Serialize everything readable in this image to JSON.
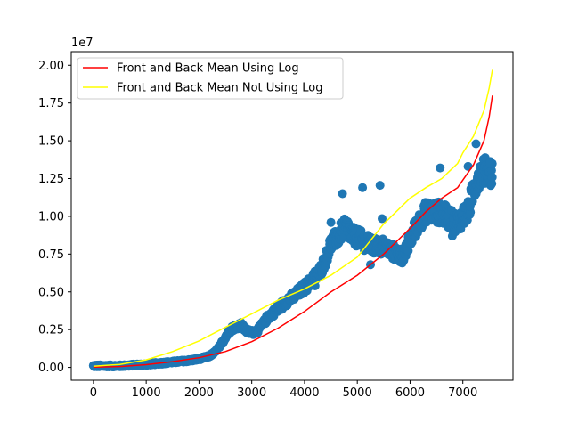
{
  "chart_data": {
    "type": "scatter",
    "title": "",
    "xlabel": "",
    "ylabel": "",
    "y_offset_label": "1e7",
    "xlim": [
      -420,
      7950
    ],
    "ylim": [
      -850000,
      20900000
    ],
    "x_ticks": [
      0,
      1000,
      2000,
      3000,
      4000,
      5000,
      6000,
      7000
    ],
    "x_tick_labels": [
      "0",
      "1000",
      "2000",
      "3000",
      "4000",
      "5000",
      "6000",
      "7000"
    ],
    "y_ticks": [
      0,
      2500000,
      5000000,
      7500000,
      10000000,
      12500000,
      15000000,
      17500000,
      20000000
    ],
    "y_tick_labels": [
      "0.00",
      "0.25",
      "0.50",
      "0.75",
      "1.00",
      "1.25",
      "1.50",
      "1.75",
      "2.00"
    ],
    "grid": false,
    "legend_position": "upper-left",
    "scatter_color": "#1f77b4",
    "scatter_trend": {
      "x": [
        0,
        500,
        1000,
        1500,
        1800,
        2000,
        2200,
        2300,
        2400,
        2500,
        2600,
        2700,
        2800,
        2900,
        3000,
        3100,
        3200,
        3300,
        3400,
        3500,
        3600,
        3700,
        3800,
        3900,
        4000,
        4100,
        4200,
        4300,
        4400,
        4500,
        4600,
        4700,
        4800,
        4900,
        5000,
        5100,
        5200,
        5300,
        5400,
        5500,
        5600,
        5700,
        5800,
        5900,
        6000,
        6100,
        6200,
        6300,
        6400,
        6500,
        6600,
        6700,
        6800,
        6900,
        7000,
        7100,
        7200,
        7300,
        7400,
        7500,
        7560
      ],
      "y": [
        100000,
        100000,
        200000,
        350000,
        450000,
        550000,
        750000,
        1000000,
        1400000,
        2000000,
        2500000,
        2700000,
        2800000,
        2400000,
        2300000,
        2400000,
        2800000,
        3300000,
        3600000,
        3900000,
        4200000,
        4500000,
        4700000,
        5000000,
        5300000,
        5600000,
        6000000,
        6400000,
        7200000,
        8200000,
        8500000,
        9000000,
        9300000,
        8700000,
        8600000,
        8400000,
        8200000,
        8000000,
        8000000,
        8000000,
        7800000,
        7600000,
        7400000,
        7400000,
        8500000,
        9200000,
        9800000,
        10300000,
        10300000,
        10300000,
        10200000,
        10000000,
        9700000,
        9600000,
        10000000,
        10300000,
        11800000,
        12700000,
        13000000,
        13000000,
        12900000
      ]
    },
    "scatter_noise": [
      {
        "x": 4720,
        "y": 11500000
      },
      {
        "x": 5100,
        "y": 11900000
      },
      {
        "x": 5430,
        "y": 12050000
      },
      {
        "x": 6570,
        "y": 13200000
      },
      {
        "x": 7250,
        "y": 14800000
      },
      {
        "x": 7510,
        "y": 13500000
      },
      {
        "x": 5470,
        "y": 9850000
      },
      {
        "x": 5250,
        "y": 6800000
      },
      {
        "x": 4500,
        "y": 9600000
      },
      {
        "x": 4200,
        "y": 5400000
      },
      {
        "x": 3800,
        "y": 4900000
      },
      {
        "x": 7100,
        "y": 13300000
      },
      {
        "x": 6800,
        "y": 8700000
      }
    ],
    "series": [
      {
        "name": "Front and Back Mean Using Log",
        "color": "#ff0000",
        "x": [
          0,
          500,
          1000,
          1500,
          2000,
          2500,
          3000,
          3500,
          4000,
          4500,
          5000,
          5500,
          6000,
          6300,
          6600,
          6900,
          7000,
          7200,
          7400,
          7500,
          7560
        ],
        "y": [
          20000,
          60000,
          180000,
          380000,
          640000,
          1050000,
          1700000,
          2600000,
          3700000,
          5000000,
          6100000,
          7500000,
          9200000,
          10300000,
          11200000,
          11900000,
          12400000,
          13400000,
          15000000,
          16600000,
          18000000
        ]
      },
      {
        "name": "Front and Back Mean Not Using Log",
        "color": "#ffff00",
        "x": [
          0,
          500,
          1000,
          1500,
          2000,
          2500,
          3000,
          3500,
          4000,
          4500,
          5000,
          5500,
          6000,
          6300,
          6600,
          6900,
          7000,
          7200,
          7400,
          7500,
          7560
        ],
        "y": [
          80000,
          200000,
          500000,
          1050000,
          1750000,
          2650000,
          3550000,
          4450000,
          5200000,
          6100000,
          7300000,
          9500000,
          11200000,
          11900000,
          12500000,
          13500000,
          14200000,
          15300000,
          17000000,
          18500000,
          19700000
        ]
      }
    ],
    "legend": [
      "Front and Back Mean Using Log",
      "Front and Back Mean Not Using Log"
    ]
  }
}
